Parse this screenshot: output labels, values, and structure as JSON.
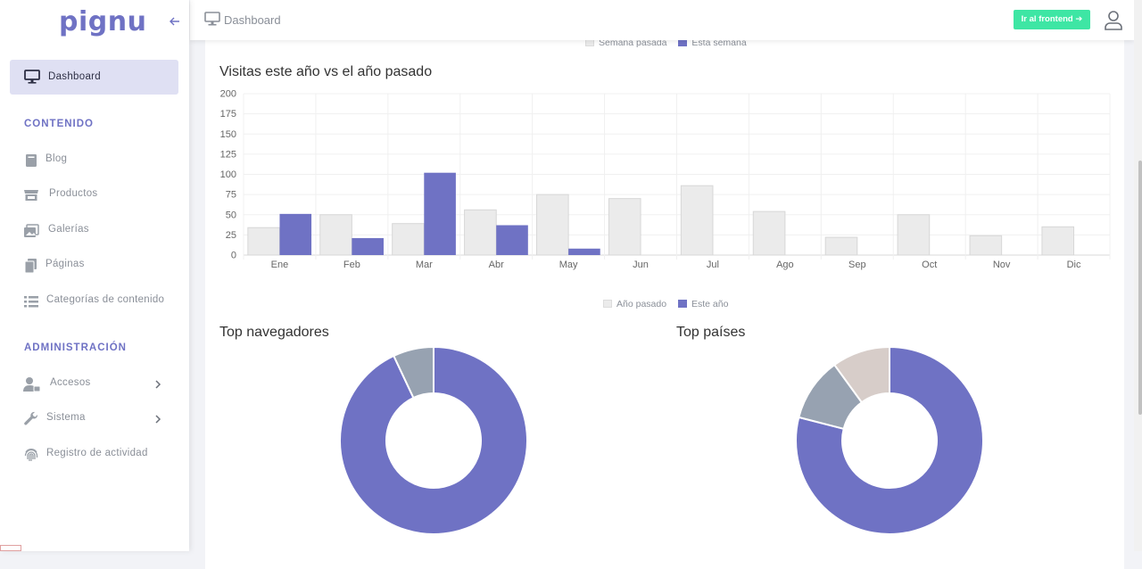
{
  "app": {
    "logo": "pignu"
  },
  "sidebar": {
    "active": {
      "label": "Dashboard",
      "icon": "monitor-icon"
    },
    "sections": [
      {
        "title": "CONTENIDO"
      },
      {
        "title": "ADMINISTRACIÓN"
      }
    ],
    "items": [
      {
        "label": "Blog",
        "icon": "book-icon"
      },
      {
        "label": "Productos",
        "icon": "store-icon"
      },
      {
        "label": "Galerías",
        "icon": "images-icon"
      },
      {
        "label": "Páginas",
        "icon": "copy-icon"
      },
      {
        "label": "Categorías de contenido",
        "icon": "list-icon"
      },
      {
        "label": "Accesos",
        "icon": "user-lock-icon"
      },
      {
        "label": "Sistema",
        "icon": "wrench-icon"
      },
      {
        "label": "Registro de actividad",
        "icon": "fingerprint-icon"
      }
    ]
  },
  "header": {
    "breadcrumb": "Dashboard",
    "frontend_button": "Ir al frontend ➔"
  },
  "top_legend": {
    "a": "Semana pasada",
    "b": "Esta semana"
  },
  "bar_legend": {
    "a": "Año pasado",
    "b": "Este año"
  },
  "colors": {
    "accent": "#6f72c4",
    "gray": "#ebebeb",
    "slate": "#97a2b1",
    "taupe": "#d7cdc9",
    "green": "#3ee6a4"
  },
  "chart_data": [
    {
      "type": "bar",
      "title": "Visitas este año vs el año pasado",
      "categories": [
        "Ene",
        "Feb",
        "Mar",
        "Abr",
        "May",
        "Jun",
        "Jul",
        "Ago",
        "Sep",
        "Oct",
        "Nov",
        "Dic"
      ],
      "series": [
        {
          "name": "Año pasado",
          "values": [
            34,
            50,
            39,
            56,
            75,
            70,
            86,
            54,
            22,
            50,
            24,
            35
          ]
        },
        {
          "name": "Este año",
          "values": [
            51,
            21,
            102,
            37,
            8,
            0,
            0,
            0,
            0,
            0,
            0,
            0
          ]
        }
      ],
      "yticks": [
        0,
        25,
        50,
        75,
        100,
        125,
        150,
        175,
        200
      ],
      "ylim": [
        0,
        200
      ],
      "grid": true,
      "legend": "bottom"
    },
    {
      "type": "pie",
      "title": "Top navegadores",
      "values": [
        93,
        7
      ]
    },
    {
      "type": "pie",
      "title": "Top países",
      "values": [
        79,
        11,
        10
      ]
    }
  ]
}
